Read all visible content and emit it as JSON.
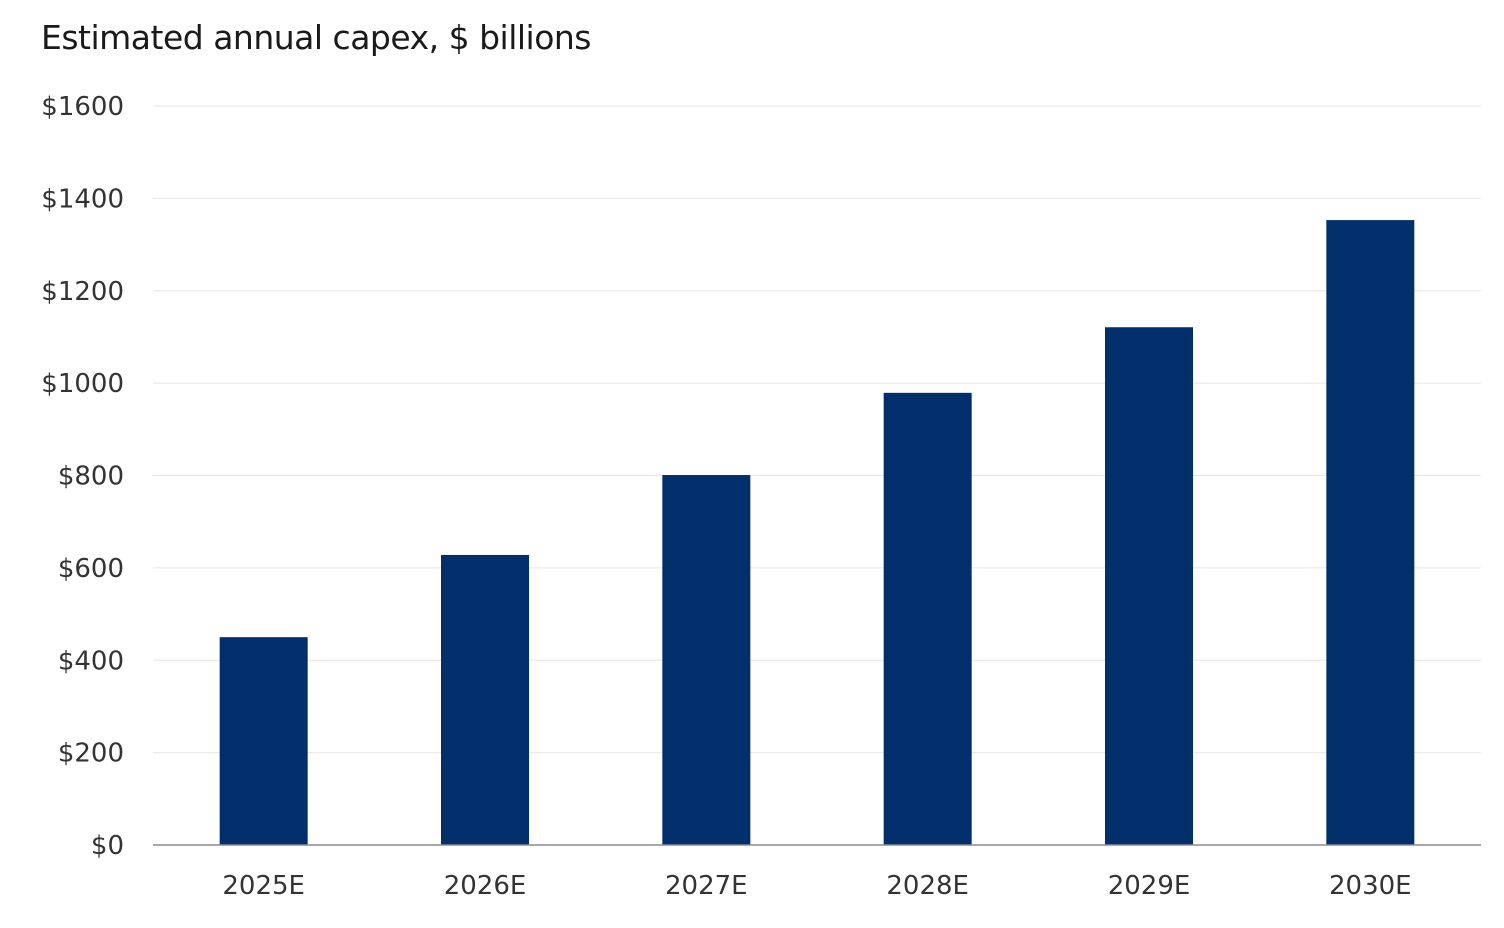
{
  "chart_data": {
    "type": "bar",
    "title": "Estimated annual capex, $ billions",
    "xlabel": "",
    "ylabel": "",
    "categories": [
      "2025E",
      "2026E",
      "2027E",
      "2028E",
      "2029E",
      "2030E"
    ],
    "values": [
      450,
      628,
      801,
      979,
      1121,
      1353
    ],
    "ylim": [
      0,
      1600
    ],
    "yticks": [
      0,
      200,
      400,
      600,
      800,
      1000,
      1200,
      1400,
      1600
    ],
    "ytick_labels": [
      "$0",
      "$200",
      "$400",
      "$600",
      "$800",
      "$1000",
      "$1200",
      "$1400",
      "$1600"
    ],
    "grid": true,
    "legend": "none",
    "colors": {
      "bar": "#002F6C",
      "grid": "#E6E6E6",
      "axis": "#8C8C8C"
    }
  }
}
